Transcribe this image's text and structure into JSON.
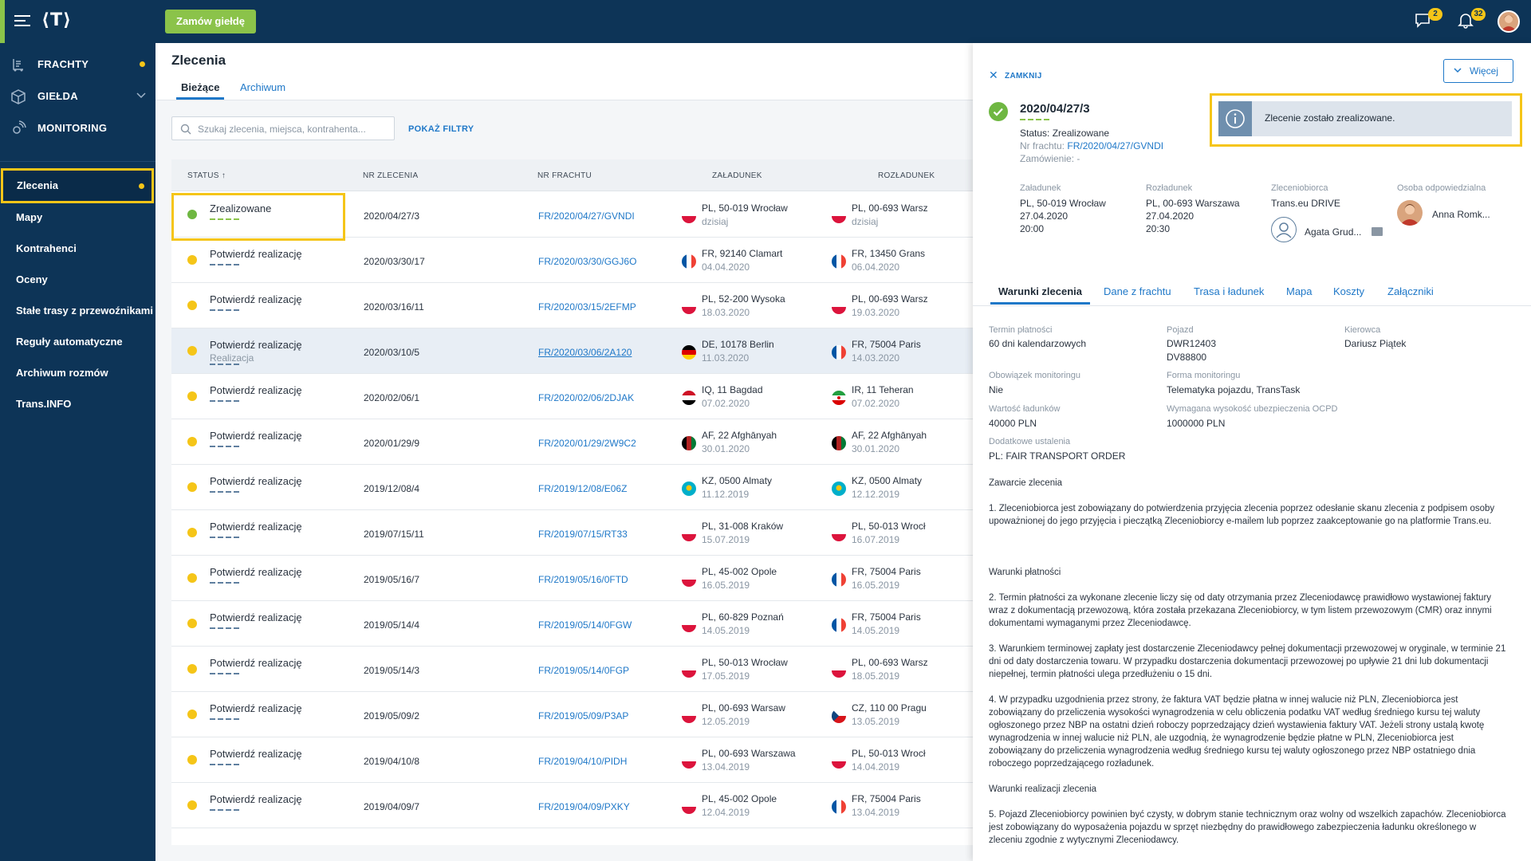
{
  "topbar": {
    "logo": "⟨T⟩",
    "order_exchange_button": "Zamów giełdę",
    "messages_badge": "2",
    "notifications_badge": "32"
  },
  "sidebar": {
    "main": [
      {
        "label": "FRACHTY",
        "icon": "freight-icon",
        "dot": true
      },
      {
        "label": "GIEŁDA",
        "icon": "box-icon",
        "chevron": true
      },
      {
        "label": "MONITORING",
        "icon": "satellite-icon"
      }
    ],
    "sub": [
      {
        "label": "Zlecenia",
        "active": true,
        "dot": true
      },
      {
        "label": "Mapy"
      },
      {
        "label": "Kontrahenci"
      },
      {
        "label": "Oceny"
      },
      {
        "label": "Stałe trasy z przewoźnikami"
      },
      {
        "label": "Reguły automatyczne"
      },
      {
        "label": "Archiwum rozmów"
      },
      {
        "label": "Trans.INFO"
      }
    ]
  },
  "page": {
    "title": "Zlecenia",
    "tabs": [
      "Bieżące",
      "Archiwum"
    ],
    "search_placeholder": "Szukaj zlecenia, miejsca, kontrahenta...",
    "show_filters": "POKAŻ FILTRY"
  },
  "table": {
    "headers": [
      "STATUS ↑",
      "NR ZLECENIA",
      "NR FRACHTU",
      "ZAŁADUNEK",
      "ROZŁADUNEK"
    ],
    "rows": [
      {
        "status": "Zrealizowane",
        "kind": "done",
        "nr": "2020/04/27/3",
        "fr": "FR/2020/04/27/GVNDI",
        "l_flag": "PL",
        "l_loc": "PL, 50-019 Wrocław",
        "l_date": "dzisiaj",
        "u_flag": "PL",
        "u_loc": "PL, 00-693 Warsz",
        "u_date": "dzisiaj"
      },
      {
        "status": "Potwierdź realizację",
        "kind": "pending",
        "nr": "2020/03/30/17",
        "fr": "FR/2020/03/30/GGJ6O",
        "l_flag": "FR",
        "l_loc": "FR, 92140 Clamart",
        "l_date": "04.04.2020",
        "u_flag": "FR",
        "u_loc": "FR, 13450 Grans",
        "u_date": "06.04.2020"
      },
      {
        "status": "Potwierdź realizację",
        "kind": "pending",
        "nr": "2020/03/16/11",
        "fr": "FR/2020/03/15/2EFMP",
        "l_flag": "PL",
        "l_loc": "PL, 52-200 Wysoka",
        "l_date": "18.03.2020",
        "u_flag": "PL",
        "u_loc": "PL, 00-693 Warsz",
        "u_date": "19.03.2020"
      },
      {
        "status": "Potwierdź realizację",
        "sub": "Realizacja",
        "kind": "pending",
        "hl": true,
        "nr": "2020/03/10/5",
        "fr": "FR/2020/03/06/2A120",
        "fr_ul": true,
        "l_flag": "DE",
        "l_loc": "DE, 10178 Berlin",
        "l_date": "11.03.2020",
        "u_flag": "FR",
        "u_loc": "FR, 75004 Paris",
        "u_date": "14.03.2020"
      },
      {
        "status": "Potwierdź realizację",
        "kind": "pending",
        "nr": "2020/02/06/1",
        "fr": "FR/2020/02/06/2DJAK",
        "l_flag": "IQ",
        "l_loc": "IQ, 11 Bagdad",
        "l_date": "07.02.2020",
        "u_flag": "IR",
        "u_loc": "IR, 11 Teheran",
        "u_date": "07.02.2020"
      },
      {
        "status": "Potwierdź realizację",
        "kind": "pending",
        "nr": "2020/01/29/9",
        "fr": "FR/2020/01/29/2W9C2",
        "l_flag": "AF",
        "l_loc": "AF, 22 Afghānyah",
        "l_date": "30.01.2020",
        "u_flag": "AF",
        "u_loc": "AF, 22 Afghānyah",
        "u_date": "30.01.2020"
      },
      {
        "status": "Potwierdź realizację",
        "kind": "pending",
        "nr": "2019/12/08/4",
        "fr": "FR/2019/12/08/E06Z",
        "l_flag": "KZ",
        "l_loc": "KZ, 0500 Almaty",
        "l_date": "11.12.2019",
        "u_flag": "KZ",
        "u_loc": "KZ, 0500 Almaty",
        "u_date": "12.12.2019"
      },
      {
        "status": "Potwierdź realizację",
        "kind": "pending",
        "nr": "2019/07/15/11",
        "fr": "FR/2019/07/15/RT33",
        "l_flag": "PL",
        "l_loc": "PL, 31-008 Kraków",
        "l_date": "15.07.2019",
        "u_flag": "PL",
        "u_loc": "PL, 50-013 Wrocł",
        "u_date": "16.07.2019"
      },
      {
        "status": "Potwierdź realizację",
        "kind": "pending",
        "nr": "2019/05/16/7",
        "fr": "FR/2019/05/16/0FTD",
        "l_flag": "PL",
        "l_loc": "PL, 45-002 Opole",
        "l_date": "16.05.2019",
        "u_flag": "FR",
        "u_loc": "FR, 75004 Paris",
        "u_date": "16.05.2019"
      },
      {
        "status": "Potwierdź realizację",
        "kind": "pending",
        "nr": "2019/05/14/4",
        "fr": "FR/2019/05/14/0FGW",
        "l_flag": "PL",
        "l_loc": "PL, 60-829 Poznań",
        "l_date": "14.05.2019",
        "u_flag": "FR",
        "u_loc": "FR, 75004 Paris",
        "u_date": "14.05.2019"
      },
      {
        "status": "Potwierdź realizację",
        "kind": "pending",
        "nr": "2019/05/14/3",
        "fr": "FR/2019/05/14/0FGP",
        "l_flag": "PL",
        "l_loc": "PL, 50-013 Wrocław",
        "l_date": "17.05.2019",
        "u_flag": "PL",
        "u_loc": "PL, 00-693 Warsz",
        "u_date": "18.05.2019"
      },
      {
        "status": "Potwierdź realizację",
        "kind": "pending",
        "nr": "2019/05/09/2",
        "fr": "FR/2019/05/09/P3AP",
        "l_flag": "PL",
        "l_loc": "PL, 00-693 Warsaw",
        "l_date": "12.05.2019",
        "u_flag": "CZ",
        "u_loc": "CZ, 110 00 Pragu",
        "u_date": "13.05.2019"
      },
      {
        "status": "Potwierdź realizację",
        "kind": "pending",
        "nr": "2019/04/10/8",
        "fr": "FR/2019/04/10/PIDH",
        "l_flag": "PL",
        "l_loc": "PL, 00-693 Warszawa",
        "l_date": "13.04.2019",
        "u_flag": "PL",
        "u_loc": "PL, 50-013 Wrocł",
        "u_date": "14.04.2019"
      },
      {
        "status": "Potwierdź realizację",
        "kind": "pending",
        "nr": "2019/04/09/7",
        "fr": "FR/2019/04/09/PXKY",
        "l_flag": "PL",
        "l_loc": "PL, 45-002 Opole",
        "l_date": "12.04.2019",
        "u_flag": "FR",
        "u_loc": "FR, 75004 Paris",
        "u_date": "13.04.2019"
      }
    ]
  },
  "panel": {
    "close": "ZAMKNIJ",
    "more": "Więcej",
    "order_id": "2020/04/27/3",
    "status_line": "Status: Zrealizowane",
    "freight_label": "Nr frachtu: ",
    "freight_value": "FR/2020/04/27/GVNDI",
    "ordered_line": "Zamówienie: -",
    "info_message": "Zlecenie zostało zrealizowane.",
    "loading_h": "Załadunek",
    "loading_v": [
      "PL, 50-019 Wrocław",
      "27.04.2020",
      "20:00"
    ],
    "unloading_h": "Rozładunek",
    "unloading_v": [
      "PL, 00-693 Warszawa",
      "27.04.2020",
      "20:30"
    ],
    "contractor_h": "Zleceniobiorca",
    "contractor_v": "Trans.eu DRIVE",
    "contractor_person": "Agata Grud...",
    "responsible_h": "Osoba odpowiedzialna",
    "responsible_v": "Anna Romk...",
    "tabs": [
      "Warunki zlecenia",
      "Dane z frachtu",
      "Trasa i ładunek",
      "Mapa",
      "Koszty",
      "Załączniki"
    ],
    "fields": {
      "payment_h": "Termin płatności",
      "payment_v": "60 dni kalendarzowych",
      "vehicle_h": "Pojazd",
      "vehicle_v1": "DWR12403",
      "vehicle_v2": "DV88800",
      "driver_h": "Kierowca",
      "driver_v": "Dariusz Piątek",
      "monitoring_h": "Obowiązek monitoringu",
      "monitoring_v": "Nie",
      "monitoring_form_h": "Forma monitoringu",
      "monitoring_form_v": "Telematyka pojazdu, TransTask",
      "cargo_value_h": "Wartość ładunków",
      "cargo_value_v": "40000 PLN",
      "insurance_h": "Wymagana wysokość ubezpieczenia OCPD",
      "insurance_v": "1000000 PLN",
      "extra_h": "Dodatkowe ustalenia",
      "extra_v": "PL: FAIR TRANSPORT ORDER"
    },
    "paragraphs": [
      "Zawarcie zlecenia",
      "1. Zleceniobiorca jest zobowiązany do potwierdzenia przyjęcia zlecenia poprzez odesłanie skanu zlecenia z podpisem osoby upoważnionej do jego przyjęcia i pieczątką Zleceniobiorcy e-mailem lub poprzez zaakceptowanie go na platformie Trans.eu.",
      "Warunki płatności",
      "2. Termin płatności za wykonane zlecenie liczy się od daty otrzymania przez Zleceniodawcę prawidłowo wystawionej faktury wraz z dokumentacją przewozową, która została przekazana Zleceniobiorcy, w tym listem przewozowym (CMR) oraz innymi dokumentami wymaganymi przez Zleceniodawcę.",
      "3. Warunkiem terminowej zapłaty jest dostarczenie Zleceniodawcy pełnej dokumentacji przewozowej w oryginale, w terminie 21 dni od daty dostarczenia towaru. W przypadku dostarczenia dokumentacji przewozowej po upływie 21 dni lub dokumentacji niepełnej, termin płatności ulega przedłużeniu o 15 dni.",
      "4. W przypadku uzgodnienia przez strony, że faktura VAT będzie płatna w innej walucie niż PLN, Zleceniobiorca jest zobowiązany do przeliczenia wysokości wynagrodzenia w celu obliczenia podatku VAT według średniego kursu tej waluty ogłoszonego przez NBP na ostatni dzień roboczy poprzedzający dzień wystawienia faktury VAT. Jeżeli strony ustalą kwotę wynagrodzenia w innej walucie niż PLN, ale uzgodnią, że wynagrodzenie będzie płatne w PLN, Zleceniobiorca jest zobowiązany do przeliczenia wynagrodzenia według średniego kursu tej waluty ogłoszonego przez NBP ostatniego dnia roboczego poprzedzającego rozładunek.",
      "Warunki realizacji zlecenia",
      "5. Pojazd Zleceniobiorcy powinien być czysty, w dobrym stanie technicznym    oraz wolny od wszelkich zapachów. Zleceniobiorca jest zobowiązany do wyposażenia pojazdu w sprzęt niezbędny do prawidłowego zabezpieczenia ładunku określonego w zleceniu zgodnie z wytycznymi Zleceniodawcy."
    ]
  },
  "colors": {
    "accent": "#8bc34a",
    "nav": "#0d3457",
    "link": "#1f78c8",
    "highlight": "#f5c518",
    "pending": "#f5c518",
    "done": "#6fb742"
  }
}
